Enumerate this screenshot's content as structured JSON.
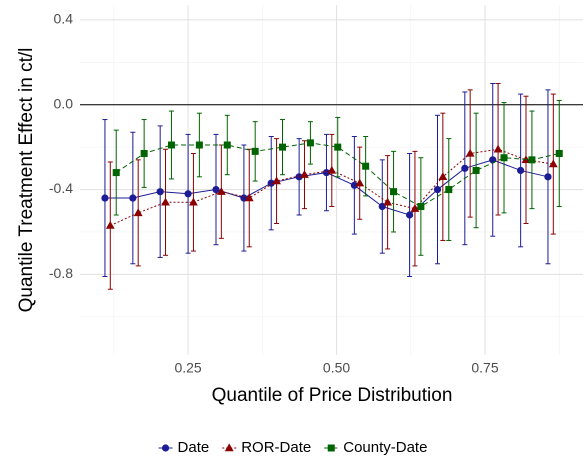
{
  "chart_data": {
    "type": "errorbar-line",
    "x_label": "Quantile of Price Distribution",
    "y_label": "Quantile Treatment Effect in ct/l",
    "xlim": [
      0.068,
      0.915
    ],
    "ylim": [
      -1.18,
      0.47
    ],
    "xticks": [
      0.25,
      {
        "value": 0.5,
        "label": "0.50"
      },
      0.75
    ],
    "yticks": [
      0.4,
      {
        "value": 0,
        "label": "0.0"
      },
      -0.4,
      -0.8
    ],
    "hline": 0,
    "grid": true,
    "legend_position": "bottom",
    "series": [
      {
        "name": "Date",
        "color": "#1c1c96",
        "marker": "circle",
        "line": "solid",
        "x": [
          0.11,
          0.157,
          0.203,
          0.25,
          0.297,
          0.344,
          0.39,
          0.437,
          0.483,
          0.53,
          0.577,
          0.623,
          0.67,
          0.716,
          0.763,
          0.81,
          0.856
        ],
        "values": [
          -0.44,
          -0.44,
          -0.41,
          -0.42,
          -0.4,
          -0.44,
          -0.37,
          -0.34,
          -0.32,
          -0.38,
          -0.48,
          -0.52,
          -0.4,
          -0.3,
          -0.26,
          -0.31,
          -0.34
        ],
        "errors": [
          0.37,
          0.31,
          0.31,
          0.28,
          0.26,
          0.25,
          0.22,
          0.18,
          0.18,
          0.23,
          0.22,
          0.29,
          0.35,
          0.36,
          0.36,
          0.36,
          0.41
        ]
      },
      {
        "name": "ROR-Date",
        "color": "#8b0000",
        "marker": "triangle",
        "line": "dotted",
        "x": [
          0.119,
          0.166,
          0.212,
          0.259,
          0.306,
          0.353,
          0.399,
          0.446,
          0.492,
          0.539,
          0.586,
          0.632,
          0.679,
          0.725,
          0.772,
          0.819,
          0.865
        ],
        "values": [
          -0.57,
          -0.51,
          -0.46,
          -0.46,
          -0.41,
          -0.44,
          -0.36,
          -0.33,
          -0.31,
          -0.37,
          -0.46,
          -0.49,
          -0.34,
          -0.23,
          -0.21,
          -0.26,
          -0.28
        ],
        "errors": [
          0.3,
          0.25,
          0.25,
          0.23,
          0.22,
          0.23,
          0.2,
          0.16,
          0.17,
          0.17,
          0.22,
          0.27,
          0.3,
          0.3,
          0.31,
          0.3,
          0.33
        ]
      },
      {
        "name": "County-Date",
        "color": "#006400",
        "marker": "square",
        "line": "dashed",
        "x": [
          0.129,
          0.176,
          0.222,
          0.269,
          0.316,
          0.363,
          0.409,
          0.456,
          0.502,
          0.549,
          0.596,
          0.642,
          0.689,
          0.735,
          0.782,
          0.829,
          0.875
        ],
        "values": [
          -0.32,
          -0.23,
          -0.19,
          -0.19,
          -0.19,
          -0.22,
          -0.2,
          -0.18,
          -0.2,
          -0.29,
          -0.41,
          -0.48,
          -0.4,
          -0.31,
          -0.25,
          -0.26,
          -0.23
        ],
        "errors": [
          0.2,
          0.16,
          0.16,
          0.15,
          0.14,
          0.14,
          0.13,
          0.1,
          0.14,
          0.14,
          0.19,
          0.23,
          0.24,
          0.27,
          0.26,
          0.23,
          0.25
        ]
      }
    ]
  }
}
